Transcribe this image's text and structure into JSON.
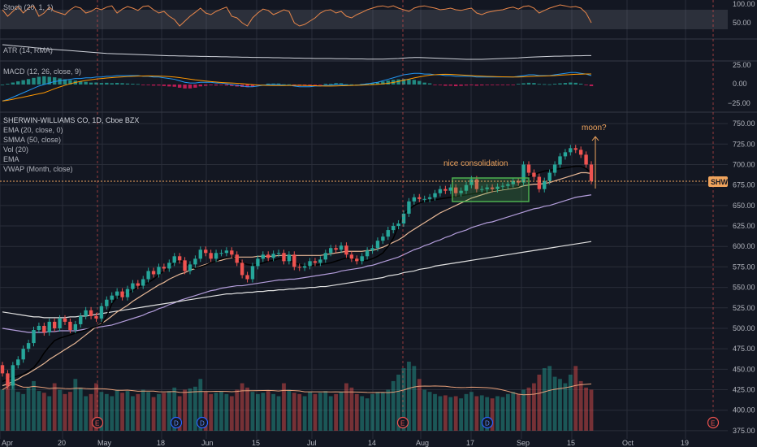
{
  "instrument": {
    "title": "SHERWIN-WILLIAMS CO, 1D, Cboe BZX",
    "ticker": "SHW"
  },
  "indicators": [
    "EMA (20, close, 0)",
    "SMMA (50, close)",
    "Vol (20)",
    "EMA",
    "VWAP (Month, close)"
  ],
  "panes": {
    "stoch": {
      "label": "Stoch (20, 1, 1)",
      "ticks": [
        "100.00",
        "50.00"
      ]
    },
    "atr": {
      "label": "ATR (14, RMA)"
    },
    "macd": {
      "label": "MACD (12, 26, close, 9)",
      "ticks": [
        "25.00",
        "0.00",
        "−25.00"
      ]
    }
  },
  "annotations": {
    "consolidation": "nice consolidation",
    "moon": "moon?"
  },
  "event_markers": [
    {
      "label": "E",
      "date": "Apr 27"
    },
    {
      "label": "D",
      "date": "May 13"
    },
    {
      "label": "D",
      "date": "Jun 8"
    },
    {
      "label": "E",
      "date": "Jul 28"
    },
    {
      "label": "D",
      "date": "Aug 21"
    },
    {
      "label": "E",
      "date": "Oct 22"
    }
  ],
  "colors": {
    "background": "#131722",
    "up": "#26a69a",
    "down": "#ef5350",
    "annotation": "#f0a45d",
    "box": "#4caf50"
  },
  "chart_data": {
    "type": "candlestick",
    "x_ticks": [
      "Apr",
      "20",
      "May",
      "18",
      "Jun",
      "15",
      "Jul",
      "14",
      "Aug",
      "17",
      "Sep",
      "15",
      "Oct",
      "19"
    ],
    "y_ticks": [
      375,
      400,
      425,
      450,
      475,
      500,
      525,
      550,
      575,
      600,
      625,
      650,
      675,
      700,
      725,
      750
    ],
    "ylim": [
      365,
      760
    ],
    "last_price": 680,
    "closes": [
      445,
      430,
      455,
      462,
      475,
      482,
      498,
      503,
      495,
      508,
      500,
      512,
      508,
      498,
      505,
      515,
      522,
      515,
      512,
      527,
      535,
      540,
      545,
      538,
      548,
      555,
      552,
      560,
      570,
      566,
      575,
      573,
      580,
      588,
      583,
      570,
      578,
      585,
      596,
      592,
      585,
      592,
      592,
      595,
      590,
      580,
      565,
      560,
      576,
      585,
      590,
      586,
      591,
      592,
      582,
      590,
      575,
      574,
      576,
      582,
      580,
      584,
      592,
      598,
      596,
      601,
      590,
      585,
      582,
      588,
      595,
      598,
      607,
      612,
      620,
      625,
      628,
      640,
      655,
      660,
      658,
      658,
      660,
      665,
      670,
      668,
      672,
      665,
      668,
      675,
      682,
      670,
      670,
      672,
      670,
      673,
      674,
      676,
      680,
      678,
      700,
      690,
      685,
      670,
      680,
      690,
      700,
      710,
      715,
      720,
      718,
      712,
      700,
      680
    ],
    "ema20": [
      430,
      432,
      435,
      438,
      442,
      445,
      449,
      453,
      457,
      462,
      466,
      470,
      474,
      478,
      482,
      487,
      492,
      497,
      502,
      506,
      510,
      515,
      520,
      524,
      528,
      533,
      537,
      541,
      545,
      549,
      553,
      556,
      560,
      563,
      566,
      568,
      571,
      573,
      576,
      578,
      580,
      582,
      583,
      585,
      586,
      587,
      587,
      587,
      587,
      588,
      588,
      588,
      588,
      589,
      589,
      589,
      589,
      589,
      589,
      589,
      589,
      589,
      590,
      591,
      592,
      593,
      594,
      594,
      594,
      594,
      595,
      595,
      597,
      599,
      602,
      605,
      608,
      612,
      617,
      621,
      625,
      629,
      633,
      637,
      641,
      644,
      647,
      650,
      653,
      656,
      659,
      661,
      663,
      665,
      667,
      668,
      669,
      670,
      671,
      672,
      674,
      675,
      676,
      676,
      677,
      678,
      680,
      682,
      684,
      686,
      688,
      690,
      690,
      689
    ],
    "smma50": [
      500,
      499,
      498,
      497,
      496,
      495,
      495,
      495,
      495,
      496,
      496,
      497,
      497,
      497,
      497,
      498,
      499,
      500,
      501,
      502,
      503,
      504,
      506,
      508,
      510,
      512,
      514,
      516,
      519,
      521,
      524,
      526,
      529,
      531,
      534,
      536,
      538,
      540,
      542,
      544,
      546,
      547,
      549,
      550,
      551,
      552,
      552,
      553,
      554,
      555,
      556,
      557,
      558,
      559,
      559,
      560,
      560,
      561,
      562,
      563,
      564,
      565,
      566,
      567,
      568,
      570,
      571,
      572,
      573,
      574,
      576,
      577,
      579,
      581,
      583,
      585,
      587,
      590,
      593,
      596,
      598,
      601,
      603,
      606,
      608,
      611,
      613,
      616,
      618,
      620,
      623,
      625,
      627,
      629,
      630,
      632,
      634,
      636,
      638,
      640,
      642,
      644,
      646,
      647,
      649,
      650,
      652,
      654,
      656,
      658,
      660,
      661,
      662,
      663
    ],
    "ema_long": [
      520,
      519,
      518,
      517,
      516,
      515,
      514,
      514,
      513,
      513,
      513,
      513,
      513,
      514,
      514,
      515,
      515,
      516,
      517,
      518,
      519,
      520,
      521,
      522,
      523,
      524,
      525,
      526,
      527,
      528,
      529,
      530,
      531,
      532,
      533,
      534,
      535,
      536,
      537,
      538,
      539,
      540,
      541,
      542,
      542,
      543,
      543,
      544,
      544,
      545,
      545,
      546,
      546,
      547,
      547,
      548,
      548,
      549,
      549,
      550,
      550,
      551,
      551,
      552,
      553,
      554,
      555,
      556,
      557,
      558,
      559,
      560,
      561,
      562,
      564,
      565,
      566,
      568,
      569,
      570,
      572,
      573,
      574,
      576,
      577,
      578,
      579,
      580,
      581,
      582,
      583,
      584,
      585,
      586,
      587,
      588,
      589,
      590,
      591,
      592,
      593,
      594,
      595,
      596,
      597,
      598,
      599,
      600,
      601,
      602,
      603,
      604,
      605,
      606
    ],
    "vwap": [
      435,
      438,
      440,
      442,
      444,
      448,
      452,
      460,
      470,
      478,
      485,
      488,
      490,
      492,
      494,
      496,
      498,
      500,
      502,
      505,
      515,
      530,
      538,
      540,
      543,
      546,
      550,
      553,
      556,
      560,
      565,
      570,
      575,
      580,
      583,
      580,
      575,
      573,
      575,
      577,
      580,
      582,
      585,
      586,
      587,
      585,
      580,
      578,
      577,
      578,
      580,
      582,
      583,
      585,
      585,
      583,
      580,
      578,
      576,
      576,
      577,
      578,
      579,
      580,
      582,
      584,
      586,
      585,
      583,
      582,
      583,
      585,
      588,
      592,
      600,
      610,
      625,
      640,
      645,
      650,
      653,
      655,
      656,
      657,
      658,
      659,
      660,
      661,
      662,
      663,
      664,
      665,
      666,
      667,
      668,
      669,
      670,
      671,
      672,
      673,
      680,
      685,
      688,
      690,
      692,
      693,
      694,
      695,
      696,
      697,
      698,
      698,
      695,
      690
    ],
    "volume": [
      95,
      110,
      125,
      90,
      85,
      100,
      115,
      92,
      88,
      80,
      110,
      95,
      85,
      90,
      120,
      100,
      80,
      85,
      110,
      90,
      85,
      80,
      95,
      88,
      92,
      80,
      85,
      95,
      90,
      78,
      85,
      88,
      92,
      100,
      80,
      95,
      98,
      102,
      120,
      90,
      85,
      88,
      92,
      85,
      80,
      95,
      110,
      100,
      90,
      85,
      88,
      92,
      85,
      80,
      110,
      95,
      88,
      85,
      80,
      90,
      85,
      88,
      92,
      80,
      85,
      90,
      110,
      100,
      85,
      80,
      75,
      85,
      90,
      88,
      95,
      115,
      130,
      145,
      160,
      150,
      120,
      95,
      90,
      85,
      80,
      82,
      78,
      80,
      75,
      85,
      90,
      80,
      82,
      78,
      75,
      80,
      78,
      85,
      90,
      85,
      95,
      100,
      110,
      130,
      145,
      150,
      125,
      120,
      110,
      130,
      150,
      115,
      100,
      95
    ],
    "stoch": [
      80,
      60,
      75,
      90,
      70,
      85,
      92,
      60,
      70,
      88,
      75,
      70,
      65,
      80,
      90,
      85,
      70,
      75,
      85,
      80,
      88,
      92,
      70,
      82,
      90,
      85,
      78,
      90,
      92,
      80,
      70,
      75,
      60,
      50,
      30,
      45,
      60,
      72,
      85,
      70,
      65,
      75,
      82,
      88,
      60,
      55,
      40,
      30,
      55,
      70,
      82,
      78,
      65,
      72,
      80,
      75,
      40,
      30,
      35,
      45,
      55,
      70,
      78,
      80,
      70,
      75,
      60,
      55,
      65,
      72,
      80,
      85,
      90,
      92,
      88,
      92,
      85,
      80,
      75,
      85,
      90,
      92,
      88,
      85,
      80,
      82,
      85,
      80,
      78,
      82,
      85,
      70,
      65,
      72,
      75,
      78,
      80,
      85,
      88,
      82,
      90,
      92,
      85,
      70,
      78,
      85,
      90,
      95,
      92,
      88,
      90,
      85,
      70,
      40
    ],
    "atr": [
      18,
      17.8,
      17.5,
      17.3,
      17,
      16.8,
      16.5,
      16.3,
      16,
      15.8,
      15.6,
      15.4,
      15.2,
      15,
      14.8,
      14.6,
      14.4,
      14.2,
      14,
      13.8,
      13.6,
      13.5,
      13.4,
      13.3,
      13.2,
      13.1,
      13,
      12.9,
      12.8,
      12.7,
      12.6,
      12.5,
      12.4,
      12.4,
      12.3,
      12.3,
      12.2,
      12.2,
      12.1,
      12.1,
      12,
      12,
      11.9,
      11.9,
      11.8,
      11.8,
      11.7,
      11.7,
      11.6,
      11.6,
      11.5,
      11.5,
      11.4,
      11.4,
      11.3,
      11.3,
      11.2,
      11.2,
      11.1,
      11.1,
      11,
      11,
      11,
      11,
      10.9,
      10.9,
      10.9,
      10.8,
      10.8,
      10.8,
      10.7,
      10.7,
      10.7,
      10.7,
      10.8,
      10.9,
      11,
      11.2,
      11.4,
      11.5,
      11.5,
      11.4,
      11.3,
      11.2,
      11.1,
      11,
      10.9,
      10.8,
      10.7,
      10.6,
      10.6,
      10.6,
      10.6,
      10.7,
      10.8,
      10.9,
      11,
      11.1,
      11.2,
      11.3,
      11.5,
      11.7,
      11.8,
      11.9,
      12,
      12.1,
      12.2,
      12.2,
      12.3,
      12.3,
      12.4,
      12.4,
      12.5,
      12.5
    ],
    "macd": [
      -22,
      -20,
      -17,
      -14,
      -11,
      -8,
      -5,
      -2,
      0,
      2,
      4,
      5,
      6,
      7,
      8,
      8,
      9,
      9,
      10,
      10,
      11,
      11,
      12,
      12,
      12,
      12,
      12,
      11,
      11,
      10,
      10,
      9,
      8,
      7,
      5,
      3,
      2,
      2,
      3,
      3,
      3,
      2,
      2,
      1,
      0,
      -1,
      -2,
      -3,
      -3,
      -2,
      -1,
      0,
      0,
      0,
      -1,
      -1,
      -2,
      -3,
      -3,
      -3,
      -2,
      -2,
      -1,
      -1,
      0,
      0,
      -1,
      -1,
      -1,
      0,
      1,
      2,
      3,
      5,
      7,
      9,
      11,
      13,
      14,
      15,
      15,
      14,
      14,
      13,
      13,
      12,
      12,
      11,
      11,
      11,
      11,
      10,
      10,
      10,
      10,
      10,
      10,
      10,
      10,
      11,
      12,
      13,
      13,
      12,
      12,
      12,
      13,
      14,
      15,
      16,
      16,
      15,
      14,
      12
    ]
  }
}
